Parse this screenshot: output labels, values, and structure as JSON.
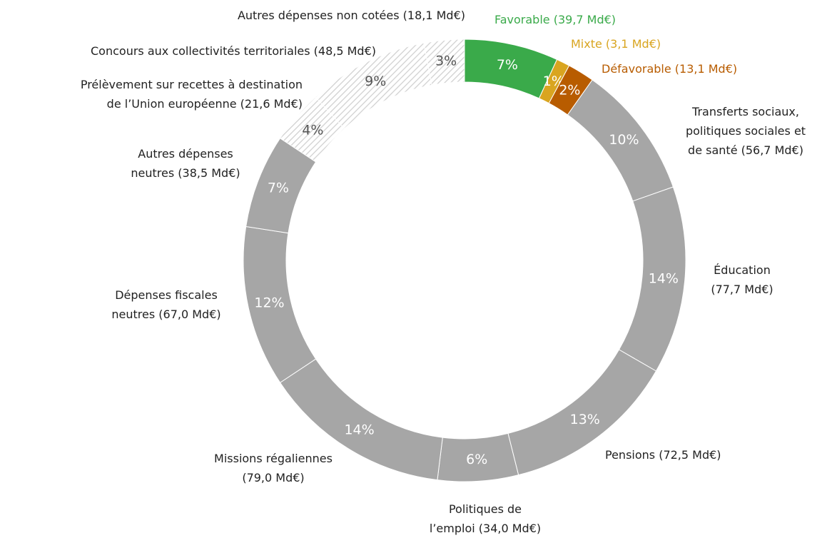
{
  "chart_data": {
    "type": "donut",
    "categories": [
      "Favorable (39,7 Md€)",
      "Mixte (3,1 Md€)",
      "Défavorable (13,1 Md€)",
      "Transferts sociaux,\npolitiques sociales et\nde santé (56,7 Md€)",
      "Éducation\n(77,7 Md€)",
      "Pensions (72,5 Md€)",
      "Politiques de\nl’emploi (34,0 Md€)",
      "Missions régaliennes\n(79,0 Md€)",
      "Dépenses fiscales\nneutres (67,0 Md€)",
      "Autres dépenses\nneutres (38,5 Md€)",
      "Prélèvement sur recettes à destination\nde l’Union européenne (21,6 Md€)",
      "Concours aux collectivités territoriales (48,5 Md€)",
      "Autres dépenses non cotées (18,1 Md€)"
    ],
    "values": [
      7,
      1,
      2,
      10,
      14,
      13,
      6,
      14,
      12,
      7,
      4,
      9,
      3
    ],
    "value_labels": [
      "7%",
      "1%",
      "2%",
      "10%",
      "14%",
      "13%",
      "6%",
      "14%",
      "12%",
      "7%",
      "4%",
      "9%",
      "3%"
    ],
    "colors": [
      "#3aaa4a",
      "#d9a520",
      "#b85c00",
      "#a6a6a6",
      "#a6a6a6",
      "#a6a6a6",
      "#a6a6a6",
      "#a6a6a6",
      "#a6a6a6",
      "#a6a6a6",
      "#f2f2f2",
      "#f2f2f2",
      "#f2f2f2"
    ],
    "hatched": [
      false,
      false,
      false,
      false,
      false,
      false,
      false,
      false,
      false,
      false,
      true,
      true,
      true
    ],
    "label_colors": [
      "#3aaa4a",
      "#d9a520",
      "#b85c00",
      "#222222",
      "#222222",
      "#222222",
      "#222222",
      "#222222",
      "#222222",
      "#222222",
      "#222222",
      "#222222",
      "#222222"
    ]
  }
}
